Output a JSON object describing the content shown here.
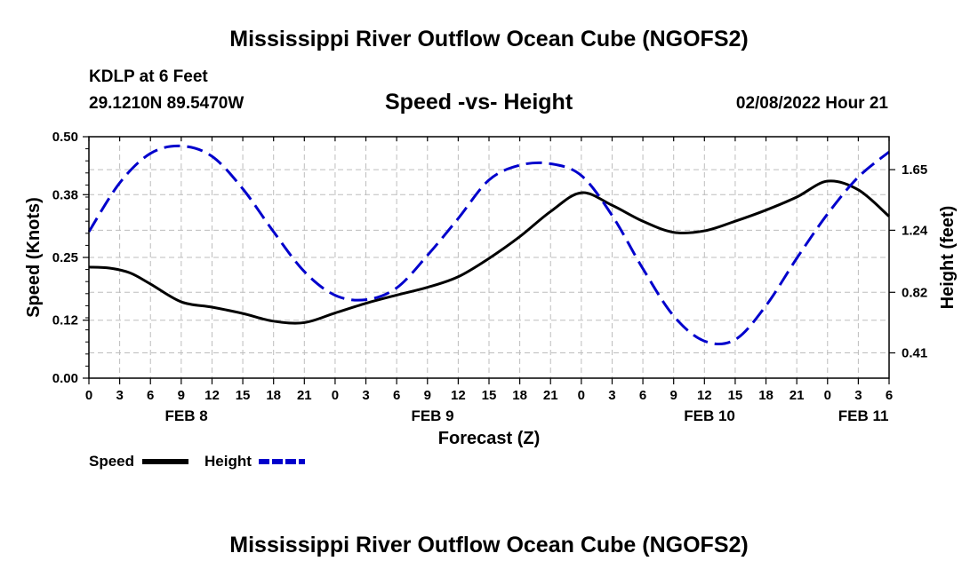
{
  "page": {
    "title_top": "Mississippi River Outflow Ocean Cube (NGOFS2)",
    "title_bottom": "Mississippi River Outflow Ocean Cube (NGOFS2)",
    "station": "KDLP at 6 Feet",
    "coords": "29.1210N  89.5470W",
    "subtitle": "Speed -vs- Height",
    "datetime": "02/08/2022 Hour 21"
  },
  "chart_data": {
    "type": "line",
    "title": "Speed -vs- Height",
    "xlabel": "Forecast (Z)",
    "ylabel": "Speed (Knots)",
    "y2label": "Height (feet)",
    "x_range": [
      0,
      78
    ],
    "x_ticks": [
      0,
      3,
      6,
      9,
      12,
      15,
      18,
      21,
      24,
      27,
      30,
      33,
      36,
      39,
      42,
      45,
      48,
      51,
      54,
      57,
      60,
      63,
      66,
      69,
      72,
      75,
      78
    ],
    "x_tick_labels": [
      "0",
      "3",
      "6",
      "9",
      "12",
      "15",
      "18",
      "21",
      "0",
      "3",
      "6",
      "9",
      "12",
      "15",
      "18",
      "21",
      "0",
      "3",
      "6",
      "9",
      "12",
      "15",
      "18",
      "21",
      "0",
      "3",
      "6"
    ],
    "date_labels": [
      {
        "x": 9.5,
        "label": "FEB 8"
      },
      {
        "x": 33.5,
        "label": "FEB 9"
      },
      {
        "x": 60.5,
        "label": "FEB 10"
      },
      {
        "x": 75.5,
        "label": "FEB 11"
      }
    ],
    "y_left": {
      "min": 0,
      "max": 0.5,
      "ticks": [
        0.0,
        0.12,
        0.25,
        0.38,
        0.5
      ],
      "tick_labels": [
        "0.00",
        "0.12",
        "0.25",
        "0.38",
        "0.50"
      ]
    },
    "y_right": {
      "min": 0.239,
      "max": 1.873,
      "ticks": [
        0.41,
        0.82,
        1.24,
        1.65
      ],
      "tick_labels": [
        "0.41",
        "0.82",
        "1.24",
        "1.65"
      ]
    },
    "grid": true,
    "series": [
      {
        "name": "Speed",
        "axis": "left",
        "color": "#000000",
        "style": "solid",
        "x": [
          0,
          2,
          4,
          6,
          9,
          12,
          15,
          18,
          21,
          24,
          27,
          30,
          33,
          36,
          39,
          42,
          45,
          48,
          51,
          54,
          57,
          60,
          63,
          66,
          69,
          72,
          75,
          78
        ],
        "values": [
          0.23,
          0.228,
          0.218,
          0.195,
          0.158,
          0.147,
          0.134,
          0.118,
          0.115,
          0.135,
          0.155,
          0.172,
          0.188,
          0.21,
          0.248,
          0.293,
          0.345,
          0.384,
          0.358,
          0.325,
          0.302,
          0.305,
          0.325,
          0.348,
          0.375,
          0.408,
          0.39,
          0.335
        ]
      },
      {
        "name": "Height",
        "axis": "right",
        "color": "#0000cc",
        "style": "dashed",
        "x": [
          0,
          3,
          6,
          9,
          12,
          15,
          18,
          21,
          24,
          27,
          30,
          33,
          36,
          39,
          42,
          45,
          48,
          51,
          54,
          57,
          60,
          63,
          66,
          69,
          72,
          75,
          78
        ],
        "values": [
          1.23,
          1.56,
          1.76,
          1.81,
          1.74,
          1.52,
          1.23,
          0.96,
          0.8,
          0.77,
          0.85,
          1.07,
          1.32,
          1.58,
          1.68,
          1.69,
          1.61,
          1.34,
          0.98,
          0.66,
          0.49,
          0.5,
          0.73,
          1.05,
          1.35,
          1.6,
          1.77
        ]
      }
    ],
    "legend": [
      {
        "label": "Speed",
        "color": "#000000",
        "style": "solid"
      },
      {
        "label": "Height",
        "color": "#0000cc",
        "style": "dashed"
      }
    ]
  }
}
